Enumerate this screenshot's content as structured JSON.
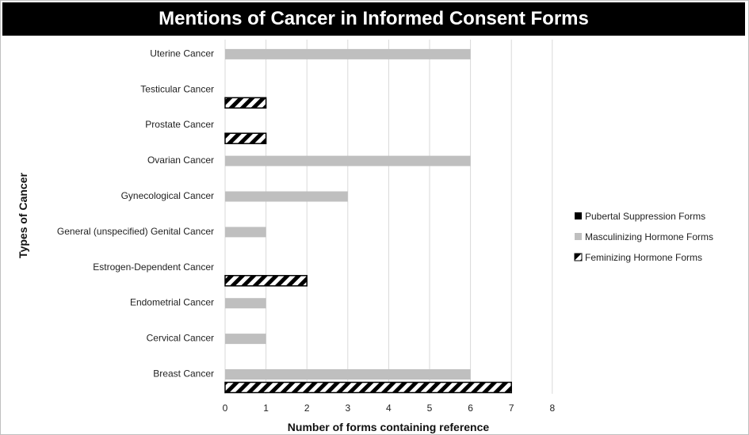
{
  "chart_data": {
    "type": "bar",
    "orientation": "horizontal",
    "title": "Mentions of Cancer in Informed Consent Forms",
    "xlabel": "Number of forms containing reference",
    "ylabel": "Types of Cancer",
    "xlim": [
      0,
      8
    ],
    "xticks": [
      "0",
      "1",
      "2",
      "3",
      "4",
      "5",
      "6",
      "7",
      "8"
    ],
    "grid": "vertical",
    "legend_position": "right",
    "categories": [
      "Breast Cancer",
      "Cervical Cancer",
      "Endometrial Cancer",
      "Estrogen-Dependent Cancer",
      "General (unspecified) Genital Cancer",
      "Gynecological Cancer",
      "Ovarian Cancer",
      "Prostate Cancer",
      "Testicular Cancer",
      "Uterine Cancer"
    ],
    "series": [
      {
        "name": "Pubertal Suppression Forms",
        "color": "#000000",
        "pattern": "solid",
        "values": [
          0,
          0,
          0,
          0,
          0,
          0,
          0,
          0,
          0,
          0
        ]
      },
      {
        "name": "Masculinizing Hormone Forms",
        "color": "#bfbfbf",
        "pattern": "solid",
        "values": [
          6,
          1,
          1,
          0,
          1,
          3,
          6,
          0,
          0,
          6
        ]
      },
      {
        "name": "Feminizing Hormone Forms",
        "color": "#000000",
        "pattern": "diagonal-hatch",
        "values": [
          7,
          0,
          0,
          2,
          0,
          0,
          0,
          1,
          1,
          0
        ]
      }
    ]
  }
}
